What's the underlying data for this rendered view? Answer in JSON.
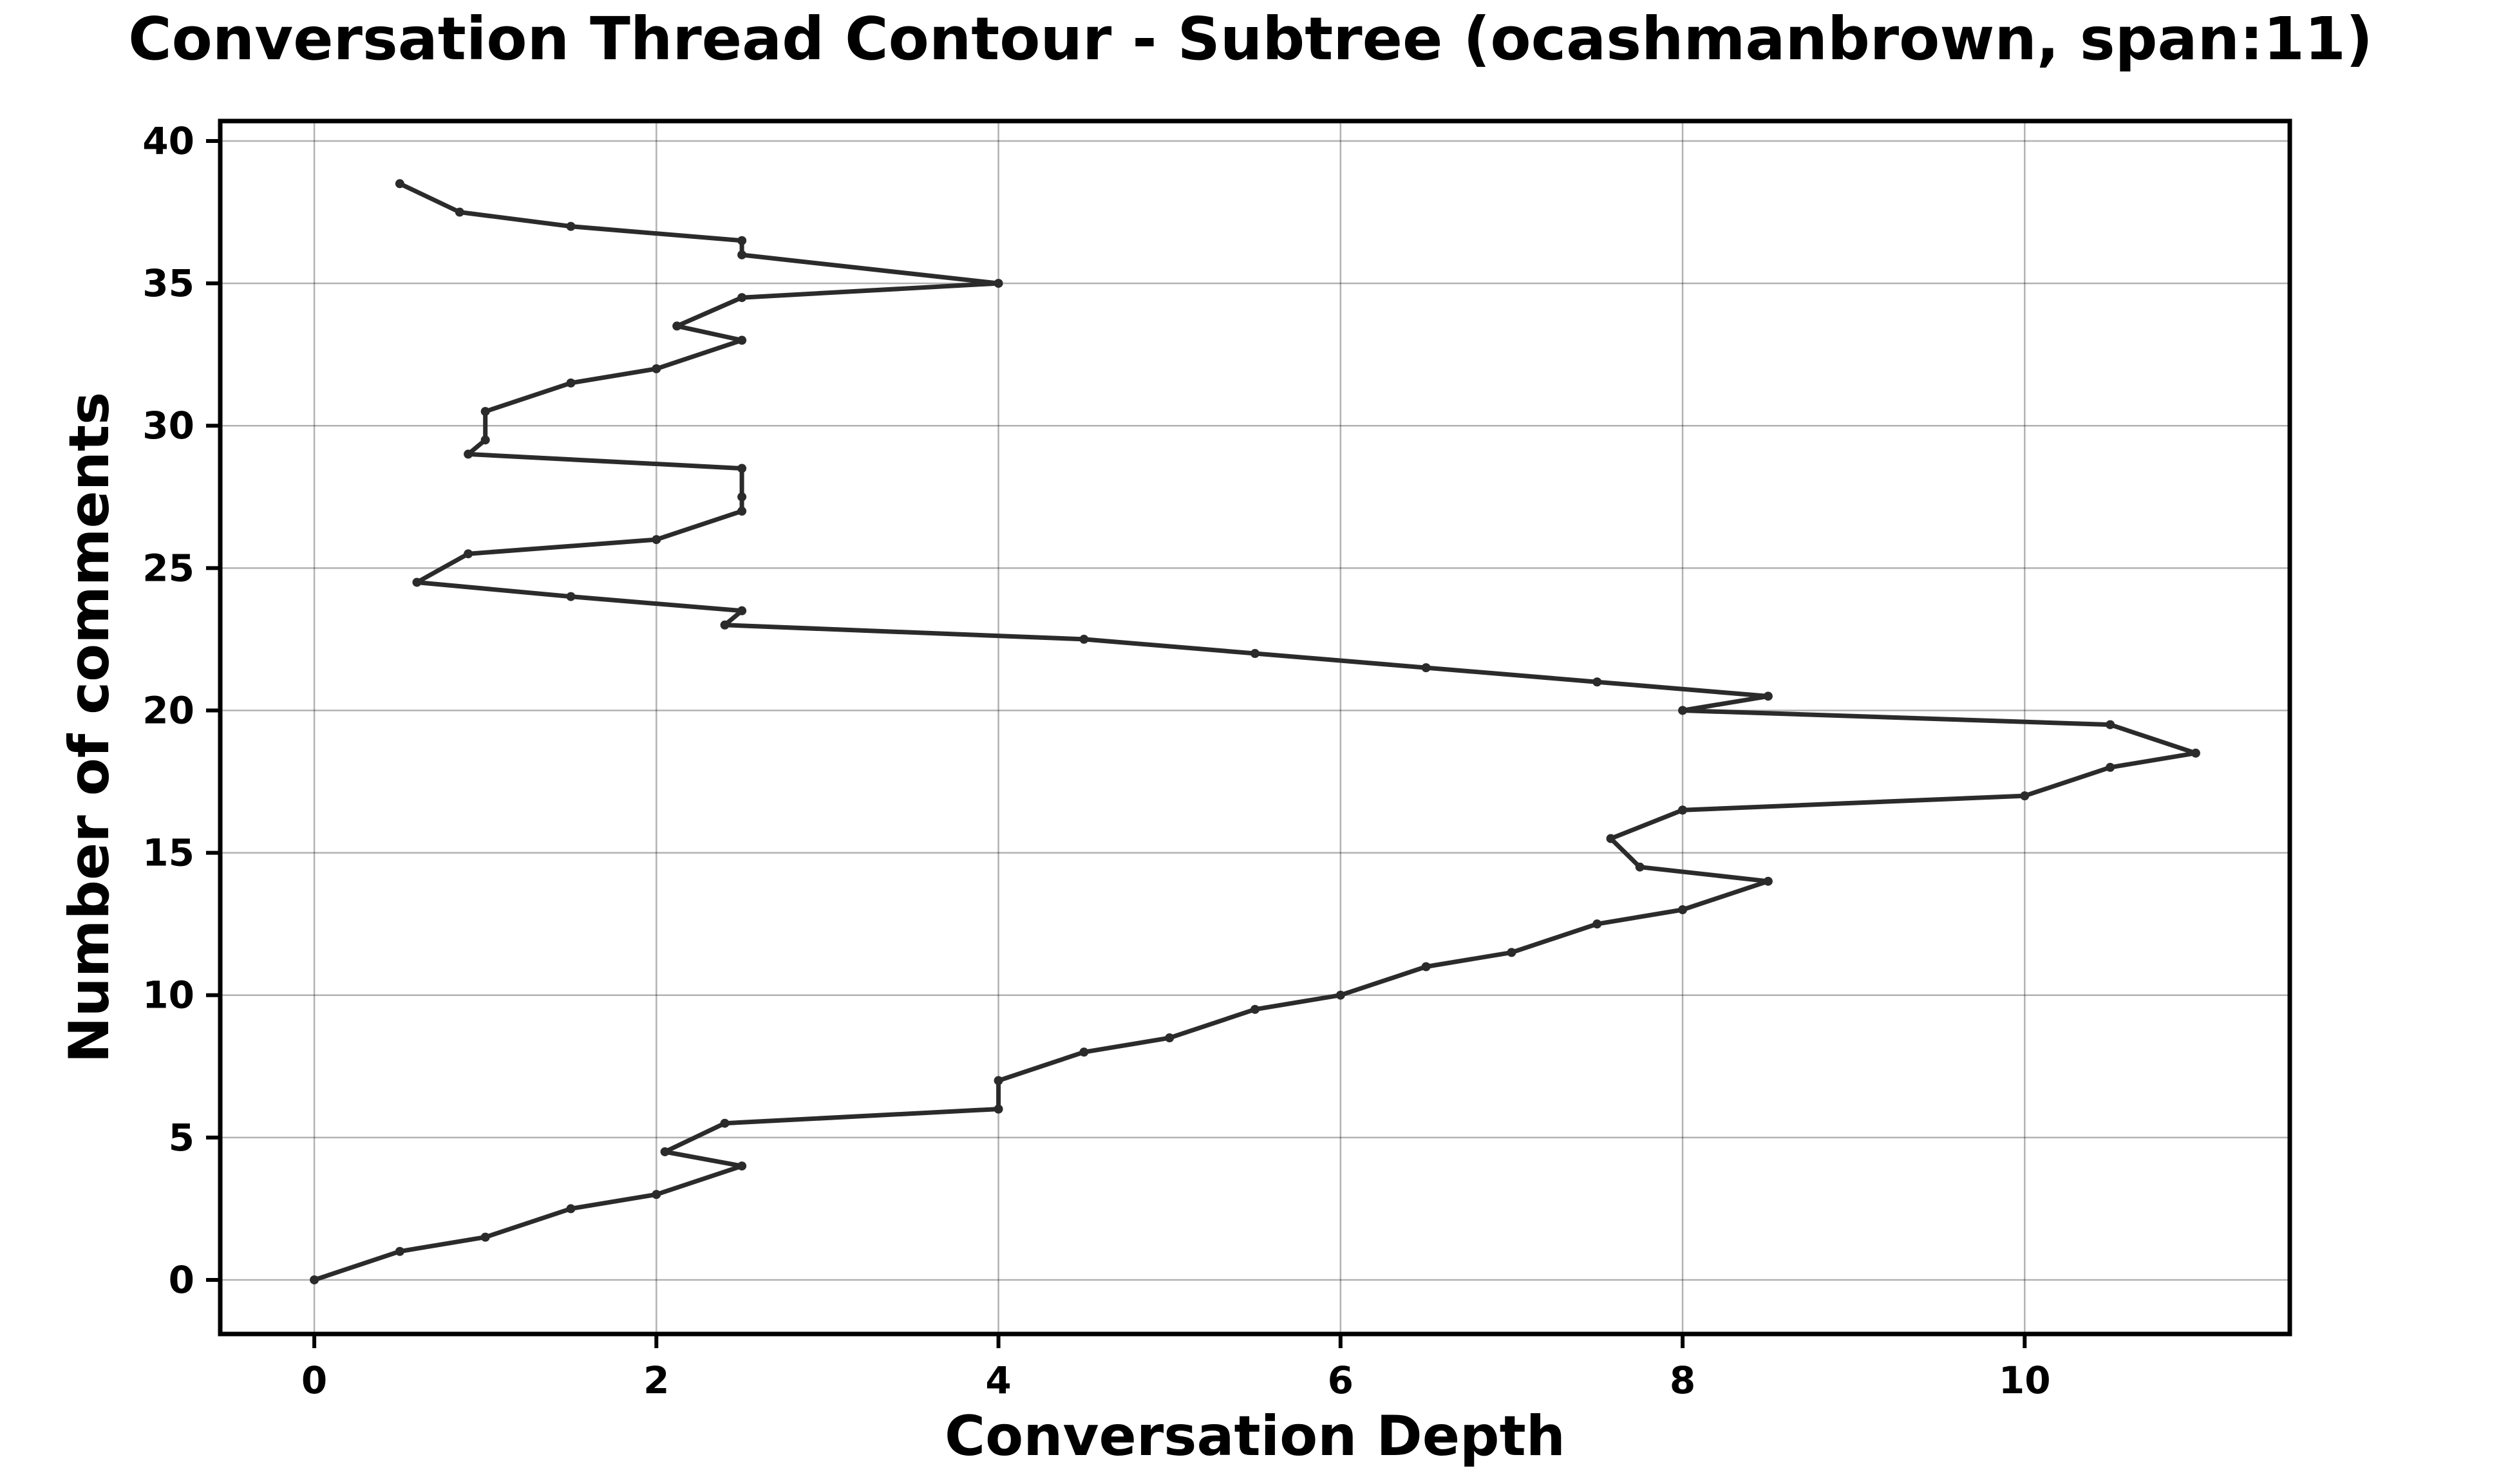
{
  "chart_data": {
    "type": "line",
    "title": "Conversation Thread Contour  - Subtree (ocashmanbrown, span:11)",
    "xlabel": "Conversation Depth",
    "ylabel": "Number of comments",
    "xlim": [
      -0.55,
      11.55
    ],
    "ylim": [
      -1.9,
      40.7
    ],
    "xticks": [
      0,
      2,
      4,
      6,
      8,
      10
    ],
    "yticks": [
      0,
      5,
      10,
      15,
      20,
      25,
      30,
      35,
      40
    ],
    "grid": true,
    "line_color": "#2b2b2b",
    "series": [
      {
        "x": [
          0,
          0.5,
          1,
          1.5,
          2,
          2.5,
          2.05,
          2.4,
          4,
          4,
          4.5,
          5,
          5.5,
          6,
          6.5,
          7,
          7.5,
          8,
          8.5,
          7.75,
          7.58,
          8,
          10,
          10.5,
          11,
          10.5,
          8,
          8.5,
          7.5,
          6.5,
          5.5,
          4.5,
          2.4,
          2.5,
          1.5,
          0.6,
          0.9,
          2,
          2.5,
          2.5,
          2.5,
          0.9,
          1,
          1,
          1.5,
          2,
          2.5,
          2.12,
          2.5,
          4,
          2.5,
          2.5,
          1.5,
          0.85,
          0.5
        ],
        "y": [
          0,
          1,
          1.5,
          2.5,
          3,
          4,
          4.5,
          5.5,
          6,
          7,
          8,
          8.5,
          9.5,
          10,
          11,
          11.5,
          12.5,
          13,
          14,
          14.5,
          15.5,
          16.5,
          17,
          18,
          18.5,
          19.5,
          20,
          20.5,
          21,
          21.5,
          22,
          22.5,
          23,
          23.5,
          24,
          24.5,
          25.5,
          26,
          27,
          27.5,
          28.5,
          29,
          29.5,
          30.5,
          31.5,
          32,
          33,
          33.5,
          34.5,
          35,
          36,
          36.5,
          37,
          37.5,
          38.5
        ]
      }
    ]
  }
}
